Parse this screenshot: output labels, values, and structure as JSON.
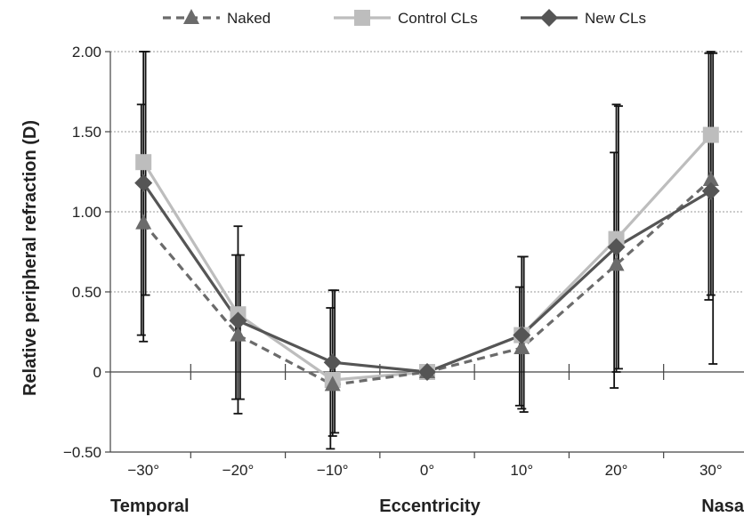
{
  "chart_data": {
    "type": "line",
    "title": "",
    "xlabel": "Eccentricity",
    "ylabel": "Relative peripheral refraction (D)",
    "side_labels": {
      "left": "Temporal",
      "right": "Nasa"
    },
    "x": [
      -30,
      -20,
      -10,
      0,
      10,
      20,
      30
    ],
    "x_tick_labels": [
      "−30°",
      "−20°",
      "−10°",
      "0°",
      "10°",
      "20°",
      "30°"
    ],
    "y_ticks": [
      -0.5,
      0,
      0.5,
      1.0,
      1.5,
      2.0
    ],
    "y_tick_labels": [
      "−0.50",
      "0",
      "0.50",
      "1.00",
      "1.50",
      "2.00"
    ],
    "ylim": [
      -0.5,
      2.0
    ],
    "xlim": [
      -33.5,
      33.5
    ],
    "grid": "horizontal dashed",
    "legend_position": "top",
    "series": [
      {
        "name": "Naked",
        "marker": "triangle",
        "line_style": "dashed",
        "color": "#6b6b6b",
        "values": [
          0.93,
          0.23,
          -0.08,
          0.0,
          0.15,
          0.67,
          1.2
        ],
        "error_low": [
          0.23,
          -0.17,
          -0.48,
          0.0,
          -0.21,
          -0.1,
          0.45
        ],
        "error_high": [
          1.67,
          0.73,
          0.4,
          0.0,
          0.53,
          1.37,
          1.99
        ]
      },
      {
        "name": "Control CLs",
        "marker": "square",
        "line_style": "solid",
        "color": "#bdbdbd",
        "values": [
          1.31,
          0.36,
          -0.05,
          0.0,
          0.23,
          0.83,
          1.48
        ],
        "error_low": [
          0.19,
          -0.26,
          -0.4,
          0.0,
          -0.23,
          0.0,
          0.48
        ],
        "error_high": [
          2.0,
          0.91,
          0.51,
          0.0,
          0.72,
          1.67,
          2.0
        ]
      },
      {
        "name": "New CLs",
        "marker": "diamond",
        "line_style": "solid",
        "color": "#555555",
        "values": [
          1.18,
          0.32,
          0.06,
          0.0,
          0.23,
          0.78,
          1.13
        ],
        "error_low": [
          0.48,
          -0.17,
          -0.38,
          0.0,
          -0.25,
          0.02,
          0.05
        ],
        "error_high": [
          2.0,
          0.73,
          0.51,
          0.0,
          0.72,
          1.66,
          1.99
        ]
      }
    ]
  }
}
